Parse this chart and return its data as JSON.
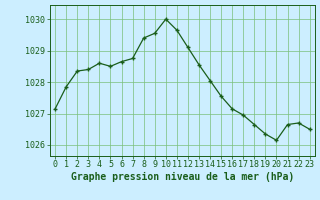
{
  "x": [
    0,
    1,
    2,
    3,
    4,
    5,
    6,
    7,
    8,
    9,
    10,
    11,
    12,
    13,
    14,
    15,
    16,
    17,
    18,
    19,
    20,
    21,
    22,
    23
  ],
  "y": [
    1027.15,
    1027.85,
    1028.35,
    1028.4,
    1028.6,
    1028.5,
    1028.65,
    1028.75,
    1029.4,
    1029.55,
    1030.0,
    1029.65,
    1029.1,
    1028.55,
    1028.05,
    1027.55,
    1027.15,
    1026.95,
    1026.65,
    1026.35,
    1026.15,
    1026.65,
    1026.7,
    1026.5
  ],
  "line_color": "#1a5e1a",
  "marker_color": "#1a5e1a",
  "bg_color": "#cceeff",
  "grid_color": "#7abf7a",
  "axis_color": "#1a5e1a",
  "xlabel": "Graphe pression niveau de la mer (hPa)",
  "xlabel_fontsize": 7,
  "tick_fontsize": 6,
  "yticks": [
    1026,
    1027,
    1028,
    1029,
    1030
  ],
  "xticks": [
    0,
    1,
    2,
    3,
    4,
    5,
    6,
    7,
    8,
    9,
    10,
    11,
    12,
    13,
    14,
    15,
    16,
    17,
    18,
    19,
    20,
    21,
    22,
    23
  ],
  "ylim": [
    1025.65,
    1030.45
  ],
  "xlim": [
    -0.5,
    23.5
  ]
}
